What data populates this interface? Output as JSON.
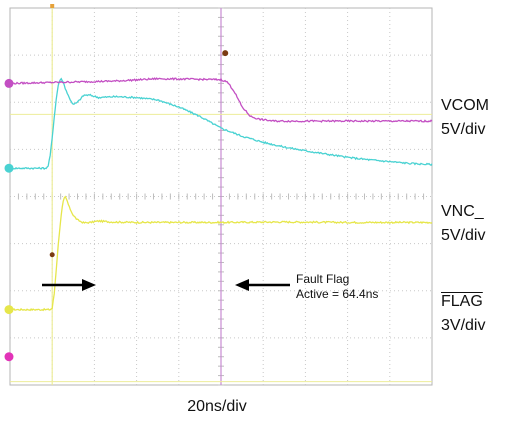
{
  "chart_data": {
    "type": "line",
    "title": "",
    "grid": true,
    "divisions": {
      "x": 10,
      "y": 8
    },
    "timebase": "20ns/div",
    "time_unit": "ns",
    "xlim": [
      0,
      200
    ],
    "channels": [
      {
        "name": "VCOM",
        "scale_label": "5V/div",
        "color": "#e6e64a",
        "unit": "div",
        "ylim": [
          -1.6,
          6.4
        ],
        "x": [
          0,
          10,
          19,
          20,
          21,
          22,
          23,
          24,
          25,
          26,
          27,
          28,
          30,
          32,
          35,
          38,
          42,
          48,
          60,
          80,
          100,
          130,
          160,
          200
        ],
        "values": [
          0,
          0,
          0,
          0.03,
          0.35,
          0.9,
          1.45,
          1.9,
          2.25,
          2.4,
          2.32,
          2.18,
          2.0,
          1.9,
          1.84,
          1.85,
          1.88,
          1.86,
          1.85,
          1.85,
          1.85,
          1.86,
          1.85,
          1.85
        ]
      },
      {
        "name": "VNC_",
        "scale_label": "5V/div",
        "color": "#49d2d2",
        "unit": "div",
        "ylim": [
          -4.6,
          3.4
        ],
        "x": [
          0,
          10,
          17,
          18,
          19,
          20,
          21,
          22,
          23,
          24,
          25,
          26,
          28,
          30,
          32,
          35,
          38,
          42,
          50,
          60,
          70,
          80,
          90,
          100,
          110,
          120,
          130,
          140,
          150,
          160,
          170,
          180,
          190,
          200
        ],
        "values": [
          0,
          0,
          0,
          0.03,
          0.25,
          0.65,
          1.1,
          1.5,
          1.8,
          1.9,
          1.86,
          1.72,
          1.5,
          1.35,
          1.4,
          1.55,
          1.55,
          1.5,
          1.52,
          1.5,
          1.45,
          1.3,
          1.1,
          0.85,
          0.68,
          0.55,
          0.45,
          0.37,
          0.3,
          0.23,
          0.18,
          0.14,
          0.1,
          0.08
        ]
      },
      {
        "name": "FLAG",
        "scale_label": "3V/div",
        "color": "#c34fc3",
        "unit": "div",
        "ylim": [
          -6.4,
          1.6
        ],
        "x": [
          0,
          50,
          70,
          100,
          103,
          106,
          110,
          114,
          118,
          125,
          140,
          160,
          200
        ],
        "values": [
          0,
          0.05,
          0.1,
          0.08,
          0.03,
          -0.15,
          -0.5,
          -0.7,
          -0.76,
          -0.8,
          -0.8,
          -0.8,
          -0.8
        ]
      }
    ],
    "cursors": {
      "trigger_time": 20,
      "flag_time": 100
    },
    "annotations": [
      {
        "text_lines": [
          "Fault Flag",
          "Active = 64.4ns"
        ]
      }
    ]
  }
}
